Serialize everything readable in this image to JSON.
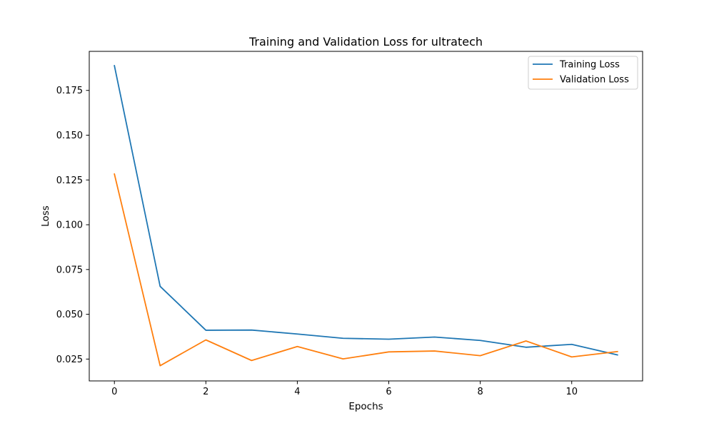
{
  "chart_data": {
    "type": "line",
    "title": "Training and Validation Loss for ultratech",
    "xlabel": "Epochs",
    "ylabel": "Loss",
    "x": [
      0,
      1,
      2,
      3,
      4,
      5,
      6,
      7,
      8,
      9,
      10,
      11
    ],
    "xlim": [
      -0.55,
      11.55
    ],
    "ylim": [
      0.0128,
      0.1968
    ],
    "xticks": [
      0,
      2,
      4,
      6,
      8,
      10
    ],
    "xtick_labels": [
      "0",
      "2",
      "4",
      "6",
      "8",
      "10"
    ],
    "yticks": [
      0.025,
      0.05,
      0.075,
      0.1,
      0.125,
      0.15,
      0.175
    ],
    "ytick_labels": [
      "0.025",
      "0.050",
      "0.075",
      "0.100",
      "0.125",
      "0.150",
      "0.175"
    ],
    "grid": false,
    "legend_position": "top-right",
    "series": [
      {
        "name": "Training Loss",
        "color": "#1f77b4",
        "values": [
          0.1888,
          0.0656,
          0.0411,
          0.0412,
          0.039,
          0.0366,
          0.0361,
          0.0373,
          0.0354,
          0.0316,
          0.0332,
          0.0273
        ]
      },
      {
        "name": "Validation Loss",
        "color": "#ff7f0e",
        "values": [
          0.1283,
          0.0213,
          0.0357,
          0.0242,
          0.032,
          0.0251,
          0.029,
          0.0295,
          0.0269,
          0.0351,
          0.0262,
          0.0292
        ]
      }
    ]
  }
}
